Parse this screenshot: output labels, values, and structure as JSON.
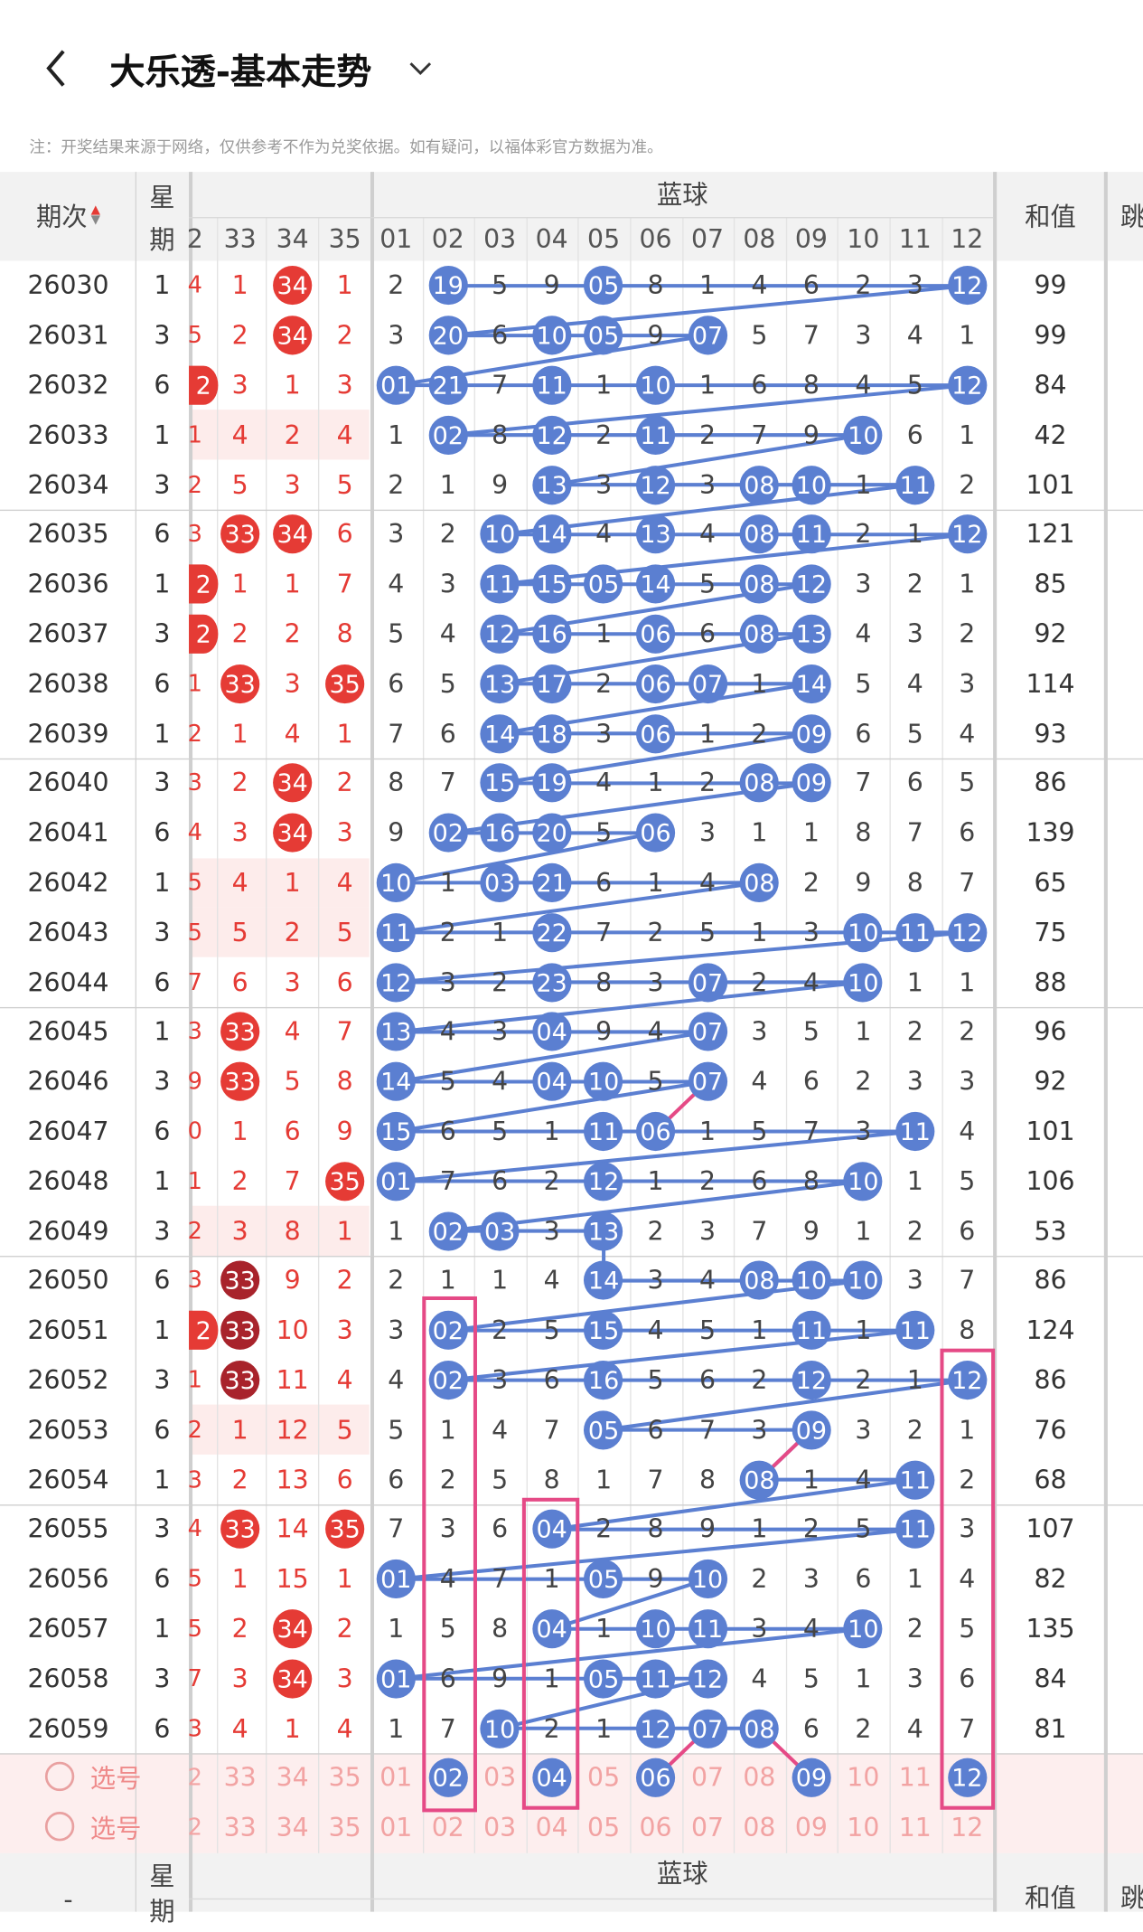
{
  "header": {
    "title": "大乐透-基本走势",
    "back_icon": "chevron-left-icon",
    "dropdown_icon": "chevron-down-icon"
  },
  "note": "注：开奖结果来源于网络，仅供参考不作为兑奖依据。如有疑问，以福体彩官方数据为准。",
  "table_header": {
    "period": "期次",
    "week_line1": "星",
    "week_line2": "期",
    "blue_title": "蓝球",
    "sum": "和值",
    "partial_next": "跳",
    "red_columns": [
      "2",
      "33",
      "34",
      "35"
    ],
    "blue_columns": [
      "01",
      "02",
      "03",
      "04",
      "05",
      "06",
      "07",
      "08",
      "09",
      "10",
      "11",
      "12"
    ]
  },
  "colors": {
    "red_ball": "#e53b35",
    "dark_red_ball": "#a8232b",
    "blue_ball": "#5b7fd1",
    "highlight_box": "#e54a86",
    "pink_row": "#fdeceb"
  },
  "rows": [
    {
      "period": "26030",
      "week": "1",
      "edge": "4",
      "red": [
        {
          "v": "1"
        },
        {
          "v": "34",
          "ball": "r"
        },
        {
          "v": "1"
        }
      ],
      "blue": [
        "2",
        "19",
        "5",
        "9",
        "05",
        "8",
        "1",
        "4",
        "6",
        "2",
        "3",
        "12"
      ],
      "sum": "99"
    },
    {
      "period": "26031",
      "week": "3",
      "edge": "5",
      "red": [
        {
          "v": "2"
        },
        {
          "v": "34",
          "ball": "r"
        },
        {
          "v": "2"
        }
      ],
      "blue": [
        "3",
        "20",
        "6",
        "10",
        "05",
        "9",
        "07",
        "5",
        "7",
        "3",
        "4",
        "1"
      ],
      "sum": "99"
    },
    {
      "period": "26032",
      "week": "6",
      "edge": "2",
      "edgeBall": true,
      "red": [
        {
          "v": "3"
        },
        {
          "v": "1"
        },
        {
          "v": "3"
        }
      ],
      "blue": [
        "01",
        "21",
        "7",
        "11",
        "1",
        "10",
        "1",
        "6",
        "8",
        "4",
        "5",
        "12"
      ],
      "sum": "84"
    },
    {
      "period": "26033",
      "week": "1",
      "edge": "1",
      "pink": true,
      "red": [
        {
          "v": "4"
        },
        {
          "v": "2"
        },
        {
          "v": "4"
        }
      ],
      "blue": [
        "1",
        "02",
        "8",
        "12",
        "2",
        "11",
        "2",
        "7",
        "9",
        "10",
        "6",
        "1"
      ],
      "sum": "42"
    },
    {
      "period": "26034",
      "week": "3",
      "edge": "2",
      "red": [
        {
          "v": "5"
        },
        {
          "v": "3"
        },
        {
          "v": "5"
        }
      ],
      "blue": [
        "2",
        "1",
        "9",
        "13",
        "3",
        "12",
        "3",
        "08",
        "10",
        "1",
        "11",
        "2"
      ],
      "sum": "101"
    },
    {
      "period": "26035",
      "week": "6",
      "edge": "3",
      "red": [
        {
          "v": "33",
          "ball": "r"
        },
        {
          "v": "34",
          "ball": "r"
        },
        {
          "v": "6"
        }
      ],
      "blue": [
        "3",
        "2",
        "10",
        "14",
        "4",
        "13",
        "4",
        "08",
        "11",
        "2",
        "1",
        "12"
      ],
      "sum": "121"
    },
    {
      "period": "26036",
      "week": "1",
      "edge": "2",
      "edgeBall": true,
      "red": [
        {
          "v": "1"
        },
        {
          "v": "1"
        },
        {
          "v": "7"
        }
      ],
      "blue": [
        "4",
        "3",
        "11",
        "15",
        "05",
        "14",
        "5",
        "08",
        "12",
        "3",
        "2",
        "1"
      ],
      "sum": "85"
    },
    {
      "period": "26037",
      "week": "3",
      "edge": "2",
      "edgeBall": true,
      "red": [
        {
          "v": "2"
        },
        {
          "v": "2"
        },
        {
          "v": "8"
        }
      ],
      "blue": [
        "5",
        "4",
        "12",
        "16",
        "1",
        "06",
        "6",
        "08",
        "13",
        "4",
        "3",
        "2"
      ],
      "sum": "92"
    },
    {
      "period": "26038",
      "week": "6",
      "edge": "1",
      "red": [
        {
          "v": "33",
          "ball": "r"
        },
        {
          "v": "3"
        },
        {
          "v": "35",
          "ball": "r"
        }
      ],
      "blue": [
        "6",
        "5",
        "13",
        "17",
        "2",
        "06",
        "07",
        "1",
        "14",
        "5",
        "4",
        "3"
      ],
      "sum": "114"
    },
    {
      "period": "26039",
      "week": "1",
      "edge": "2",
      "red": [
        {
          "v": "1"
        },
        {
          "v": "4"
        },
        {
          "v": "1"
        }
      ],
      "blue": [
        "7",
        "6",
        "14",
        "18",
        "3",
        "06",
        "1",
        "2",
        "09",
        "6",
        "5",
        "4"
      ],
      "sum": "93"
    },
    {
      "period": "26040",
      "week": "3",
      "edge": "3",
      "red": [
        {
          "v": "2"
        },
        {
          "v": "34",
          "ball": "r"
        },
        {
          "v": "2"
        }
      ],
      "blue": [
        "8",
        "7",
        "15",
        "19",
        "4",
        "1",
        "2",
        "08",
        "09",
        "7",
        "6",
        "5"
      ],
      "sum": "86"
    },
    {
      "period": "26041",
      "week": "6",
      "edge": "4",
      "red": [
        {
          "v": "3"
        },
        {
          "v": "34",
          "ball": "r"
        },
        {
          "v": "3"
        }
      ],
      "blue": [
        "9",
        "02",
        "16",
        "20",
        "5",
        "06",
        "3",
        "1",
        "1",
        "8",
        "7",
        "6"
      ],
      "sum": "139"
    },
    {
      "period": "26042",
      "week": "1",
      "edge": "5",
      "pink": true,
      "red": [
        {
          "v": "4"
        },
        {
          "v": "1"
        },
        {
          "v": "4"
        }
      ],
      "blue": [
        "10",
        "1",
        "03",
        "21",
        "6",
        "1",
        "4",
        "08",
        "2",
        "9",
        "8",
        "7"
      ],
      "sum": "65"
    },
    {
      "period": "26043",
      "week": "3",
      "edge": "5",
      "pink": true,
      "red": [
        {
          "v": "5"
        },
        {
          "v": "2"
        },
        {
          "v": "5"
        }
      ],
      "blue": [
        "11",
        "2",
        "1",
        "22",
        "7",
        "2",
        "5",
        "1",
        "3",
        "10",
        "11",
        "12"
      ],
      "sum": "75"
    },
    {
      "period": "26044",
      "week": "6",
      "edge": "7",
      "red": [
        {
          "v": "6"
        },
        {
          "v": "3"
        },
        {
          "v": "6"
        }
      ],
      "blue": [
        "12",
        "3",
        "2",
        "23",
        "8",
        "3",
        "07",
        "2",
        "4",
        "10",
        "1",
        "1"
      ],
      "sum": "88"
    },
    {
      "period": "26045",
      "week": "1",
      "edge": "3",
      "red": [
        {
          "v": "33",
          "ball": "r"
        },
        {
          "v": "4"
        },
        {
          "v": "7"
        }
      ],
      "blue": [
        "13",
        "4",
        "3",
        "04",
        "9",
        "4",
        "07",
        "3",
        "5",
        "1",
        "2",
        "2"
      ],
      "sum": "96"
    },
    {
      "period": "26046",
      "week": "3",
      "edge": "9",
      "red": [
        {
          "v": "33",
          "ball": "r"
        },
        {
          "v": "5"
        },
        {
          "v": "8"
        }
      ],
      "blue": [
        "14",
        "5",
        "4",
        "04",
        "10",
        "5",
        "07",
        "4",
        "6",
        "2",
        "3",
        "3"
      ],
      "sum": "92"
    },
    {
      "period": "26047",
      "week": "6",
      "edge": "0",
      "red": [
        {
          "v": "1"
        },
        {
          "v": "6"
        },
        {
          "v": "9"
        }
      ],
      "blue": [
        "15",
        "6",
        "5",
        "1",
        "11",
        "06",
        "1",
        "5",
        "7",
        "3",
        "11",
        "4"
      ],
      "sum": "101"
    },
    {
      "period": "26048",
      "week": "1",
      "edge": "1",
      "red": [
        {
          "v": "2"
        },
        {
          "v": "7"
        },
        {
          "v": "35",
          "ball": "r"
        }
      ],
      "blue": [
        "01",
        "7",
        "6",
        "2",
        "12",
        "1",
        "2",
        "6",
        "8",
        "10",
        "1",
        "5"
      ],
      "sum": "106"
    },
    {
      "period": "26049",
      "week": "3",
      "edge": "2",
      "pink": true,
      "red": [
        {
          "v": "3"
        },
        {
          "v": "8"
        },
        {
          "v": "1"
        }
      ],
      "blue": [
        "1",
        "02",
        "03",
        "3",
        "13",
        "2",
        "3",
        "7",
        "9",
        "1",
        "2",
        "6"
      ],
      "sum": "53"
    },
    {
      "period": "26050",
      "week": "6",
      "edge": "3",
      "red": [
        {
          "v": "33",
          "ball": "d"
        },
        {
          "v": "9"
        },
        {
          "v": "2"
        }
      ],
      "blue": [
        "2",
        "1",
        "1",
        "4",
        "14",
        "3",
        "4",
        "08",
        "10",
        "10",
        "3",
        "7"
      ],
      "sum": "86"
    },
    {
      "period": "26051",
      "week": "1",
      "edge": "2",
      "edgeBall": true,
      "red": [
        {
          "v": "33",
          "ball": "d"
        },
        {
          "v": "10"
        },
        {
          "v": "3"
        }
      ],
      "blue": [
        "3",
        "02",
        "2",
        "5",
        "15",
        "4",
        "5",
        "1",
        "11",
        "1",
        "11",
        "8"
      ],
      "sum": "124"
    },
    {
      "period": "26052",
      "week": "3",
      "edge": "1",
      "red": [
        {
          "v": "33",
          "ball": "d"
        },
        {
          "v": "11"
        },
        {
          "v": "4"
        }
      ],
      "blue": [
        "4",
        "02",
        "3",
        "6",
        "16",
        "5",
        "6",
        "2",
        "12",
        "2",
        "1",
        "12"
      ],
      "sum": "86"
    },
    {
      "period": "26053",
      "week": "6",
      "edge": "2",
      "pink": true,
      "red": [
        {
          "v": "1"
        },
        {
          "v": "12"
        },
        {
          "v": "5"
        }
      ],
      "blue": [
        "5",
        "1",
        "4",
        "7",
        "05",
        "6",
        "7",
        "3",
        "09",
        "3",
        "2",
        "1"
      ],
      "sum": "76"
    },
    {
      "period": "26054",
      "week": "1",
      "edge": "3",
      "red": [
        {
          "v": "2"
        },
        {
          "v": "13"
        },
        {
          "v": "6"
        }
      ],
      "blue": [
        "6",
        "2",
        "5",
        "8",
        "1",
        "7",
        "8",
        "08",
        "1",
        "4",
        "11",
        "2"
      ],
      "sum": "68"
    },
    {
      "period": "26055",
      "week": "3",
      "edge": "4",
      "red": [
        {
          "v": "33",
          "ball": "r"
        },
        {
          "v": "14"
        },
        {
          "v": "35",
          "ball": "r"
        }
      ],
      "blue": [
        "7",
        "3",
        "6",
        "04",
        "2",
        "8",
        "9",
        "1",
        "2",
        "5",
        "11",
        "3"
      ],
      "sum": "107"
    },
    {
      "period": "26056",
      "week": "6",
      "edge": "5",
      "red": [
        {
          "v": "1"
        },
        {
          "v": "15"
        },
        {
          "v": "1"
        }
      ],
      "blue": [
        "01",
        "4",
        "7",
        "1",
        "05",
        "9",
        "10",
        "2",
        "3",
        "6",
        "1",
        "4"
      ],
      "sum": "82"
    },
    {
      "period": "26057",
      "week": "1",
      "edge": "5",
      "red": [
        {
          "v": "2"
        },
        {
          "v": "34",
          "ball": "r"
        },
        {
          "v": "2"
        }
      ],
      "blue": [
        "1",
        "5",
        "8",
        "04",
        "1",
        "10",
        "11",
        "3",
        "4",
        "10",
        "2",
        "5"
      ],
      "sum": "135"
    },
    {
      "period": "26058",
      "week": "3",
      "edge": "7",
      "red": [
        {
          "v": "3"
        },
        {
          "v": "34",
          "ball": "r"
        },
        {
          "v": "3"
        }
      ],
      "blue": [
        "01",
        "6",
        "9",
        "1",
        "05",
        "11",
        "12",
        "4",
        "5",
        "1",
        "3",
        "6"
      ],
      "sum": "84"
    },
    {
      "period": "26059",
      "week": "6",
      "edge": "3",
      "red": [
        {
          "v": "4"
        },
        {
          "v": "1"
        },
        {
          "v": "4"
        }
      ],
      "blue": [
        "1",
        "7",
        "10",
        "2",
        "1",
        "12",
        "07",
        "08",
        "6",
        "2",
        "4",
        "7"
      ],
      "sum": "81"
    }
  ],
  "select_rows": [
    {
      "label": "选号",
      "edge": "2",
      "red": [
        "33",
        "34",
        "35"
      ],
      "blue": [
        "01",
        "02",
        "03",
        "04",
        "05",
        "06",
        "07",
        "08",
        "09",
        "10",
        "11",
        "12"
      ],
      "selected": [
        "02",
        "04",
        "06",
        "09",
        "12"
      ]
    },
    {
      "label": "选号",
      "edge": "2",
      "red": [
        "33",
        "34",
        "35"
      ],
      "blue": [
        "01",
        "02",
        "03",
        "04",
        "05",
        "06",
        "07",
        "08",
        "09",
        "10",
        "11",
        "12"
      ],
      "selected": []
    }
  ],
  "footer_header": {
    "period_dash": "-",
    "week_line1": "星",
    "week_line2": "期",
    "blue_title": "蓝球",
    "sum": "和值",
    "partial_next": "跳"
  }
}
